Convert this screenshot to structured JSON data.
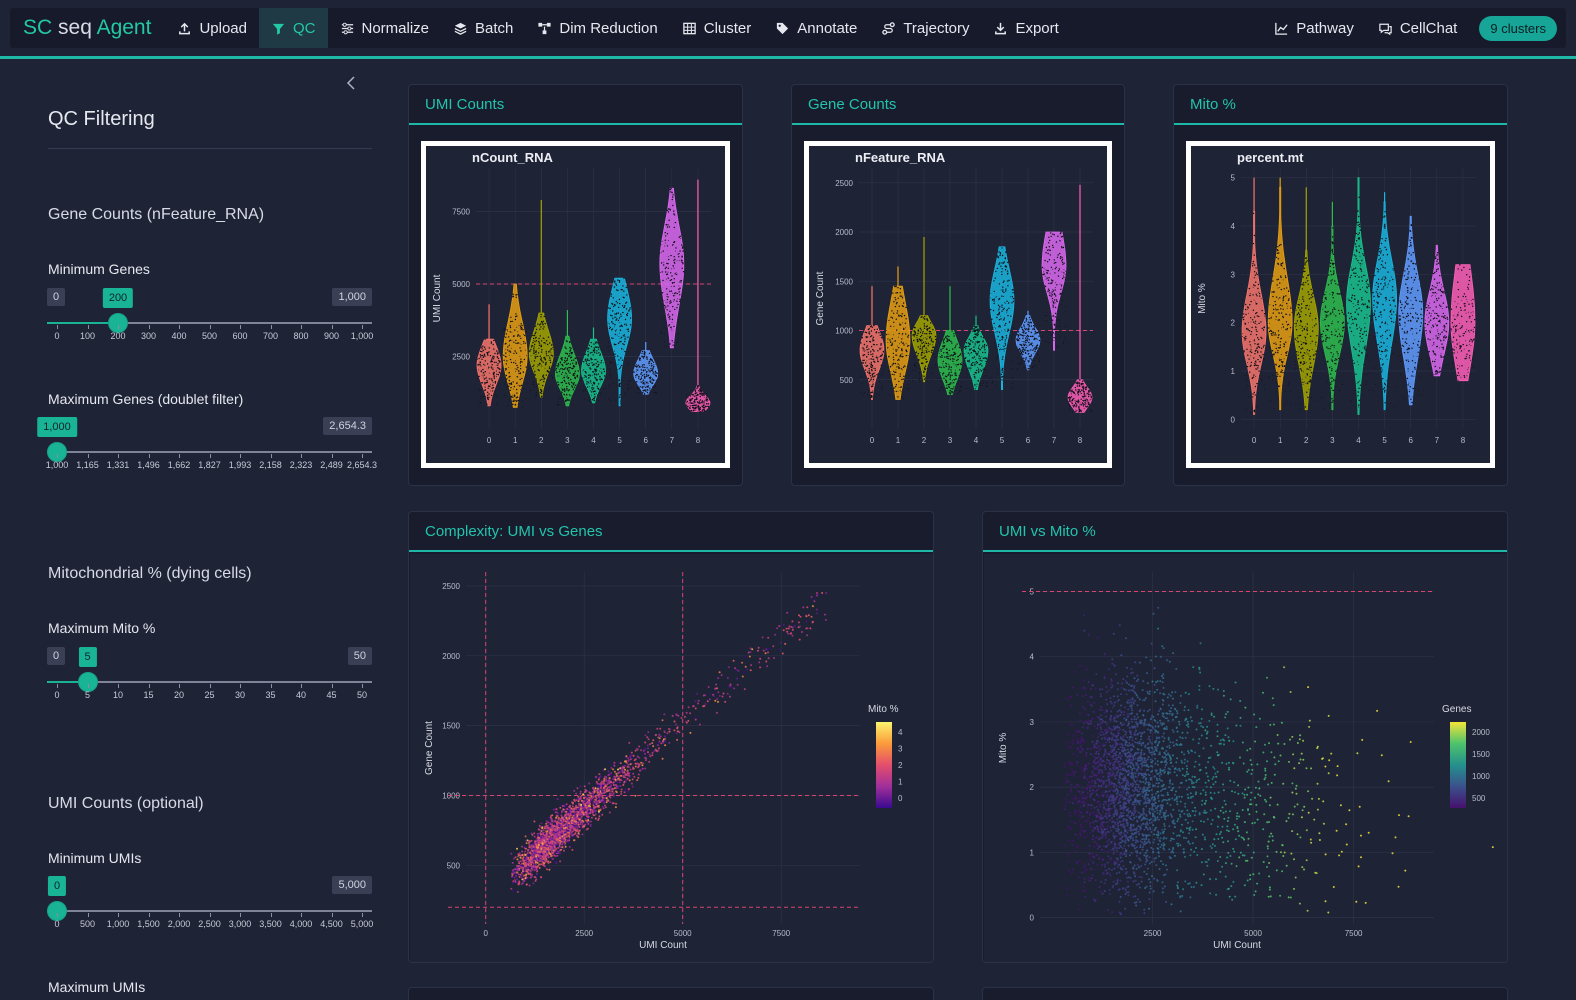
{
  "app": {
    "brand_sc": "SC",
    "brand_seq": " seq ",
    "brand_agent": "Agent"
  },
  "nav": {
    "items": [
      {
        "label": "Upload",
        "icon": "upload-icon"
      },
      {
        "label": "QC",
        "icon": "filter-icon"
      },
      {
        "label": "Normalize",
        "icon": "sliders-icon"
      },
      {
        "label": "Batch",
        "icon": "layers-icon"
      },
      {
        "label": "Dim Reduction",
        "icon": "diagram-icon"
      },
      {
        "label": "Cluster",
        "icon": "grid-icon"
      },
      {
        "label": "Annotate",
        "icon": "tag-icon"
      },
      {
        "label": "Trajectory",
        "icon": "route-icon"
      },
      {
        "label": "Export",
        "icon": "download-icon"
      }
    ],
    "active": "QC",
    "right": [
      {
        "label": "Pathway",
        "icon": "line-chart-icon"
      },
      {
        "label": "CellChat",
        "icon": "chat-icon"
      }
    ],
    "clusters_badge": "9 clusters"
  },
  "sidebar": {
    "title": "QC Filtering",
    "gene_section": "Gene Counts (nFeature_RNA)",
    "min_genes": {
      "label": "Minimum Genes",
      "min": "0",
      "max": "1,000",
      "value": "200",
      "fraction": 0.2,
      "ticks": [
        "0",
        "100",
        "200",
        "300",
        "400",
        "500",
        "600",
        "700",
        "800",
        "900",
        "1,000"
      ]
    },
    "max_genes": {
      "label": "Maximum Genes (doublet filter)",
      "min": "1,000",
      "max": "2,654.3",
      "value": "1,000",
      "fraction": 0.0,
      "ticks": [
        "1,000",
        "1,165",
        "1,331",
        "1,496",
        "1,662",
        "1,827",
        "1,993",
        "2,158",
        "2,323",
        "2,489",
        "2,654.3"
      ]
    },
    "mito_section": "Mitochondrial % (dying cells)",
    "max_mito": {
      "label": "Maximum Mito %",
      "min": "0",
      "max": "50",
      "value": "5",
      "fraction": 0.1,
      "ticks": [
        "0",
        "5",
        "10",
        "15",
        "20",
        "25",
        "30",
        "35",
        "40",
        "45",
        "50"
      ]
    },
    "umi_section": "UMI Counts (optional)",
    "min_umis": {
      "label": "Minimum UMIs",
      "min": "0",
      "max": "5,000",
      "value": "0",
      "fraction": 0.0,
      "ticks": [
        "0",
        "500",
        "1,000",
        "1,500",
        "2,000",
        "2,500",
        "3,000",
        "3,500",
        "4,000",
        "4,500",
        "5,000"
      ]
    },
    "max_umis_label": "Maximum UMIs"
  },
  "panels": {
    "umi": {
      "title": "UMI Counts"
    },
    "genes": {
      "title": "Gene Counts"
    },
    "mito": {
      "title": "Mito %"
    },
    "complexity": {
      "title": "Complexity: UMI vs Genes"
    },
    "umi_mito": {
      "title": "UMI vs Mito %"
    }
  },
  "colors": {
    "accent": "#1fb8a6",
    "clusters": [
      "#f8766d",
      "#e8a012",
      "#a3a500",
      "#2ebd4e",
      "#19c28e",
      "#1ab6df",
      "#619cff",
      "#dd6af1",
      "#ff5fb8"
    ],
    "threshold": "#d6456f"
  },
  "chart_data": [
    {
      "type": "violin",
      "id": "umi_violin",
      "title": "nCount_RNA",
      "xlabel": "",
      "ylabel": "UMI Count",
      "categories": [
        "0",
        "1",
        "2",
        "3",
        "4",
        "5",
        "6",
        "7",
        "8"
      ],
      "yticks": [
        2500,
        5000,
        7500
      ],
      "ylim": [
        0,
        9000
      ],
      "threshold": 5000,
      "series": [
        {
          "median": 2200,
          "q1": 1700,
          "q3": 2700,
          "min": 800,
          "max": 3100,
          "top": 4300
        },
        {
          "median": 2500,
          "q1": 1800,
          "q3": 3400,
          "min": 750,
          "max": 5000,
          "top": 5000
        },
        {
          "median": 2600,
          "q1": 2100,
          "q3": 3200,
          "min": 1100,
          "max": 4000,
          "top": 7900
        },
        {
          "median": 1900,
          "q1": 1500,
          "q3": 2400,
          "min": 800,
          "max": 3200,
          "top": 4100
        },
        {
          "median": 2000,
          "q1": 1600,
          "q3": 2500,
          "min": 900,
          "max": 3100,
          "top": 3500
        },
        {
          "median": 3800,
          "q1": 3100,
          "q3": 4600,
          "min": 800,
          "max": 5200,
          "top": 5200
        },
        {
          "median": 1900,
          "q1": 1600,
          "q3": 2300,
          "min": 1200,
          "max": 2700,
          "top": 3000
        },
        {
          "median": 5700,
          "q1": 4600,
          "q3": 6700,
          "min": 2800,
          "max": 8300,
          "top": 8300
        },
        {
          "median": 900,
          "q1": 700,
          "q3": 1100,
          "min": 600,
          "max": 1500,
          "top": 8600
        }
      ]
    },
    {
      "type": "violin",
      "id": "gene_violin",
      "title": "nFeature_RNA",
      "xlabel": "",
      "ylabel": "Gene Count",
      "categories": [
        "0",
        "1",
        "2",
        "3",
        "4",
        "5",
        "6",
        "7",
        "8"
      ],
      "yticks": [
        500,
        1000,
        1500,
        2000,
        2500
      ],
      "ylim": [
        0,
        2650
      ],
      "threshold": 1000,
      "series": [
        {
          "median": 800,
          "q1": 650,
          "q3": 950,
          "min": 300,
          "max": 1050,
          "top": 1450
        },
        {
          "median": 900,
          "q1": 650,
          "q3": 1200,
          "min": 300,
          "max": 1450,
          "top": 1650
        },
        {
          "median": 950,
          "q1": 800,
          "q3": 1050,
          "min": 480,
          "max": 1150,
          "top": 1950
        },
        {
          "median": 700,
          "q1": 550,
          "q3": 850,
          "min": 350,
          "max": 1000,
          "top": 1450
        },
        {
          "median": 800,
          "q1": 650,
          "q3": 900,
          "min": 400,
          "max": 1050,
          "top": 1150
        },
        {
          "median": 1300,
          "q1": 1050,
          "q3": 1550,
          "min": 400,
          "max": 1850,
          "top": 1850
        },
        {
          "median": 900,
          "q1": 800,
          "q3": 1000,
          "min": 600,
          "max": 1150,
          "top": 1200
        },
        {
          "median": 1650,
          "q1": 1450,
          "q3": 1950,
          "min": 800,
          "max": 2000,
          "top": 2000
        },
        {
          "median": 320,
          "q1": 240,
          "q3": 400,
          "min": 170,
          "max": 500,
          "top": 2480
        }
      ]
    },
    {
      "type": "violin",
      "id": "mito_violin",
      "title": "percent.mt",
      "xlabel": "",
      "ylabel": "Mito %",
      "categories": [
        "0",
        "1",
        "2",
        "3",
        "4",
        "5",
        "6",
        "7",
        "8"
      ],
      "yticks": [
        0,
        1,
        2,
        3,
        4,
        5
      ],
      "ylim": [
        -0.2,
        5.2
      ],
      "threshold": null,
      "series": [
        {
          "median": 1.8,
          "q1": 1.3,
          "q3": 2.4,
          "min": 0.1,
          "max": 4.3,
          "top": 5.0
        },
        {
          "median": 2.0,
          "q1": 1.5,
          "q3": 2.7,
          "min": 0.2,
          "max": 4.8,
          "top": 5.0
        },
        {
          "median": 1.9,
          "q1": 1.3,
          "q3": 2.4,
          "min": 0.2,
          "max": 3.5,
          "top": 4.8
        },
        {
          "median": 2.0,
          "q1": 1.5,
          "q3": 2.5,
          "min": 0.2,
          "max": 4.0,
          "top": 4.5
        },
        {
          "median": 2.4,
          "q1": 1.7,
          "q3": 3.0,
          "min": 0.1,
          "max": 5.0,
          "top": 5.0
        },
        {
          "median": 2.5,
          "q1": 1.8,
          "q3": 3.1,
          "min": 0.2,
          "max": 4.5,
          "top": 4.7
        },
        {
          "median": 2.2,
          "q1": 1.5,
          "q3": 2.8,
          "min": 0.3,
          "max": 4.2,
          "top": 4.2
        },
        {
          "median": 2.0,
          "q1": 1.5,
          "q3": 2.5,
          "min": 0.9,
          "max": 3.6,
          "top": 3.6
        },
        {
          "median": 2.0,
          "q1": 1.3,
          "q3": 2.9,
          "min": 0.8,
          "max": 3.2,
          "top": 3.2
        }
      ]
    },
    {
      "type": "scatter",
      "id": "complexity_scatter",
      "title": "",
      "xlabel": "UMI Count",
      "ylabel": "Gene Count",
      "xlim": [
        -500,
        9500
      ],
      "ylim": [
        80,
        2600
      ],
      "xticks": [
        0,
        2500,
        5000,
        7500
      ],
      "yticks": [
        500,
        1000,
        1500,
        2000,
        2500
      ],
      "vlines": [
        0,
        5000
      ],
      "hlines": [
        200,
        1000
      ],
      "n_points": 2600,
      "color_by": "Mito %",
      "legend": {
        "title": "Mito %",
        "ticks": [
          "4",
          "3",
          "2",
          "1",
          "0"
        ],
        "colors": [
          "#fcf36d",
          "#fb9b3a",
          "#e34e6c",
          "#a12f9b",
          "#3a0a8f"
        ]
      }
    },
    {
      "type": "scatter",
      "id": "umi_mito_scatter",
      "title": "",
      "xlabel": "UMI Count",
      "ylabel": "Mito %",
      "xlim": [
        -300,
        9500
      ],
      "ylim": [
        -0.1,
        5.3
      ],
      "xticks": [
        2500,
        5000,
        7500
      ],
      "yticks": [
        0,
        1,
        2,
        3,
        4,
        5
      ],
      "hlines": [
        5
      ],
      "vlines": [],
      "n_points": 3000,
      "color_by": "Genes",
      "legend": {
        "title": "Genes",
        "ticks": [
          "2000",
          "1500",
          "1000",
          "500"
        ],
        "colors": [
          "#f3e43a",
          "#4ec36b",
          "#24908c",
          "#3b518b",
          "#46116d"
        ]
      }
    }
  ]
}
